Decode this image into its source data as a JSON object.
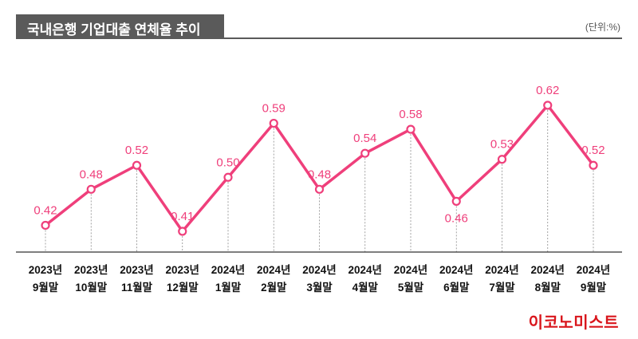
{
  "header": {
    "title": "국내은행 기업대출 연체율 추이",
    "unit": "(단위:%)"
  },
  "brand": "이코노미스트",
  "colors": {
    "line": "#ef3f7b",
    "header_bg": "#5a5a5a",
    "brand": "#d9161c",
    "value_label": "#ef3f7b",
    "tick_text": "#111111"
  },
  "chart_data": {
    "type": "line",
    "categories": [
      [
        "2023년",
        "9월말"
      ],
      [
        "2023년",
        "10월말"
      ],
      [
        "2023년",
        "11월말"
      ],
      [
        "2023년",
        "12월말"
      ],
      [
        "2024년",
        "1월말"
      ],
      [
        "2024년",
        "2월말"
      ],
      [
        "2024년",
        "3월말"
      ],
      [
        "2024년",
        "4월말"
      ],
      [
        "2024년",
        "5월말"
      ],
      [
        "2024년",
        "6월말"
      ],
      [
        "2024년",
        "7월말"
      ],
      [
        "2024년",
        "8월말"
      ],
      [
        "2024년",
        "9월말"
      ]
    ],
    "values": [
      0.42,
      0.48,
      0.52,
      0.41,
      0.5,
      0.59,
      0.48,
      0.54,
      0.58,
      0.46,
      0.53,
      0.62,
      0.52
    ],
    "value_labels": [
      "0.42",
      "0.48",
      "0.52",
      "0.41",
      "0.50",
      "0.59",
      "0.48",
      "0.54",
      "0.58",
      "0.46",
      "0.53",
      "0.62",
      "0.52"
    ],
    "title": "국내은행 기업대출 연체율 추이",
    "unit": "(단위:%)",
    "grid": false,
    "legend": "none"
  }
}
